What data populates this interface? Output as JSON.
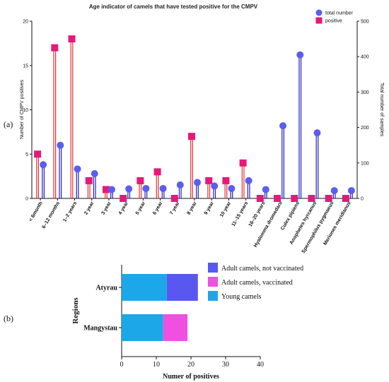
{
  "panel_labels": {
    "a": "(a)",
    "b": "(b)"
  },
  "chart_data": [
    {
      "type": "lollipop",
      "title": "Age indicator of camels that have tested positive for the CMPV",
      "ylabel": "Number of CMPV positives",
      "y2label": "Total number of samples",
      "ylim": [
        0,
        20
      ],
      "y2lim": [
        0,
        500
      ],
      "yticks": [
        "0",
        "5",
        "10",
        "15",
        "20"
      ],
      "y2ticks": [
        "0",
        "100",
        "200",
        "300",
        "400",
        "500"
      ],
      "legend_position": "top-right",
      "categories": [
        "< 6month",
        "6–12 months",
        "1–2 years",
        "2 year",
        "3 year",
        "4 year",
        "5 year",
        "6 year",
        "7 year",
        "8 year",
        "9 year",
        "10 year",
        "11–15 years",
        "16–20 years",
        "Hyalomma dromedarii",
        "Culex pipiens",
        "Anopheles hyrcanus",
        "Spermophilus pygmaeus",
        "Meriones meridianus"
      ],
      "series": [
        {
          "name": "positive",
          "axis": "left",
          "color": "#e8187a",
          "stem_color": "#e03030",
          "marker": "square",
          "values": [
            5,
            17,
            18,
            2,
            1,
            0,
            2,
            3,
            0,
            7,
            2,
            2,
            4,
            0,
            0,
            0,
            0,
            0,
            0
          ]
        },
        {
          "name": "total number",
          "axis": "right",
          "color": "#5a5ef0",
          "stem_color": "#2020c0",
          "marker": "circle",
          "values": [
            95,
            150,
            83,
            70,
            25,
            27,
            28,
            28,
            38,
            45,
            35,
            28,
            50,
            25,
            205,
            405,
            185,
            22,
            22
          ]
        }
      ]
    },
    {
      "type": "bar",
      "orientation": "horizontal",
      "stacked": true,
      "ylabel": "Regions",
      "xlabel": "Numer of positives",
      "xlim": [
        0,
        40
      ],
      "xticks": [
        "0",
        "10",
        "20",
        "30",
        "40"
      ],
      "legend_position": "top-right",
      "categories": [
        "Atyrau",
        "Mangystau"
      ],
      "series": [
        {
          "name": "Young camels",
          "color": "#1ca8e8",
          "values": [
            13,
            12
          ]
        },
        {
          "name": "Adult camels, vaccinated",
          "color": "#f050e0",
          "values": [
            0,
            7
          ]
        },
        {
          "name": "Adult camels, not vaccinated",
          "color": "#5858f0",
          "values": [
            9,
            0
          ]
        }
      ],
      "legend_order": [
        "Adult camels, not vaccinated",
        "Adult camels, vaccinated",
        "Young camels"
      ]
    }
  ]
}
